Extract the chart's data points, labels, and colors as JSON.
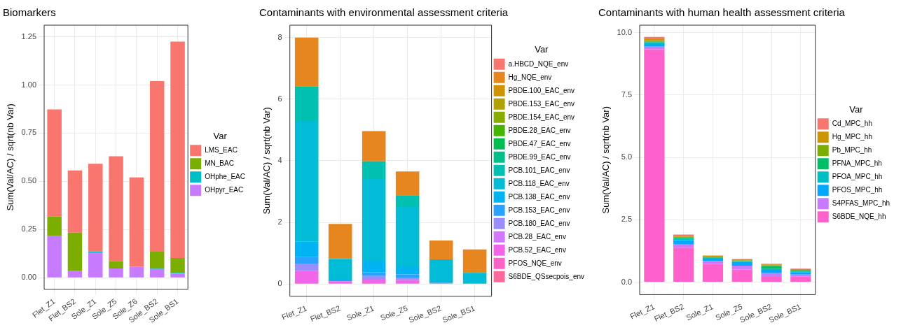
{
  "chart_data": [
    {
      "type": "bar",
      "stacked": true,
      "title": "Biomarkers",
      "ylabel": "Sum(Val/AC) / sqrt(nb Var)",
      "legend_title": "Var",
      "legend": "right",
      "grid": true,
      "categories": [
        "Flet_Z1",
        "Flet_BS2",
        "Sole_Z1",
        "Sole_Z5",
        "Sole_Z6",
        "Sole_BS2",
        "Sole_BS1"
      ],
      "ylim": [
        -0.06,
        1.31
      ],
      "yticks": [
        {
          "value": 0,
          "label": "0.00"
        },
        {
          "value": 0.25,
          "label": "0.25"
        },
        {
          "value": 0.5,
          "label": "0.50"
        },
        {
          "value": 0.75,
          "label": "0.75"
        },
        {
          "value": 1,
          "label": "1.00"
        },
        {
          "value": 1.25,
          "label": "1.25"
        }
      ],
      "series": [
        {
          "name": "OHpyr_EAC",
          "color": "#c77cff",
          "values": [
            0.216,
            0.034,
            0.131,
            0.048,
            0.058,
            0.045,
            0.021
          ]
        },
        {
          "name": "OHphe_EAC",
          "color": "#00bfc4",
          "values": [
            0,
            0,
            0.005,
            0.004,
            null,
            0.003,
            0.004
          ]
        },
        {
          "name": "MN_BAC",
          "color": "#7cae00",
          "values": [
            0.101,
            0.2,
            0,
            0.033,
            0,
            0.087,
            0.077
          ]
        },
        {
          "name": "LMS_EAC",
          "color": "#f8766d",
          "values": [
            0.556,
            0.323,
            0.455,
            0.545,
            0.462,
            0.885,
            1.123
          ]
        }
      ]
    },
    {
      "type": "bar",
      "stacked": true,
      "title": "Contaminants with environmental assessment criteria",
      "ylabel": "Sum(Val/AC) / sqrt(nb Var)",
      "legend_title": "Var",
      "legend": "right",
      "grid": true,
      "categories": [
        "Flet_Z1",
        "Flet_BS2",
        "Sole_Z1",
        "Sole_Z5",
        "Sole_BS2",
        "Sole_BS1"
      ],
      "ylim": [
        -0.4,
        8.4
      ],
      "yticks": [
        0,
        2,
        4,
        6,
        8
      ],
      "series": [
        {
          "name": "S6BDE_QSsecpois_env",
          "color": "#ff689e",
          "values": [
            0,
            0,
            0,
            0,
            0,
            0
          ]
        },
        {
          "name": "PFOS_NQE_env",
          "color": "#ff61c7",
          "values": [
            0,
            0,
            0,
            0,
            0,
            0
          ]
        },
        {
          "name": "PCB.52_EAC_env",
          "color": "#f166e8",
          "values": [
            0.42,
            0.09,
            0.16,
            0.13,
            0.03,
            null
          ]
        },
        {
          "name": "PCB.28_EAC_env",
          "color": "#d277ff",
          "values": [
            0,
            0,
            0,
            0,
            0,
            0
          ]
        },
        {
          "name": "PCB.180_EAC_env",
          "color": "#9c8dff",
          "values": [
            0.24,
            0,
            0.1,
            0.08,
            0,
            0
          ]
        },
        {
          "name": "PCB.153_EAC_env",
          "color": "#29a3ff",
          "values": [
            0.21,
            0,
            0.12,
            0.1,
            0,
            0
          ]
        },
        {
          "name": "PCB.138_EAC_env",
          "color": "#00b3f2",
          "values": [
            0.51,
            0.07,
            0.35,
            0.26,
            0.04,
            0
          ]
        },
        {
          "name": "PCB.118_EAC_env",
          "color": "#00bcd6",
          "values": [
            3.89,
            0.65,
            2.68,
            1.93,
            0.73,
            0.36
          ]
        },
        {
          "name": "PCB.101_EAC_env",
          "color": "#00c0b2",
          "values": [
            1.11,
            0.03,
            0.57,
            0.38,
            0,
            0
          ]
        },
        {
          "name": "PBDE.99_EAC_env",
          "color": "#00c087",
          "values": [
            0.03,
            0,
            0,
            0,
            0,
            0
          ]
        },
        {
          "name": "PBDE.47_EAC_env",
          "color": "#00bc51",
          "values": [
            0,
            0,
            0,
            0,
            0,
            0
          ]
        },
        {
          "name": "PBDE.28_EAC_env",
          "color": "#45b500",
          "values": [
            0,
            0,
            0,
            0,
            0,
            0
          ]
        },
        {
          "name": "PBDE.154_EAC_env",
          "color": "#89ac00",
          "values": [
            0,
            0,
            0,
            0,
            0,
            0
          ]
        },
        {
          "name": "PBDE.153_EAC_env",
          "color": "#b2a100",
          "values": [
            0,
            0,
            0,
            0,
            0,
            0
          ]
        },
        {
          "name": "PBDE.100_EAC_env",
          "color": "#d09400",
          "values": [
            0,
            0,
            0,
            0,
            0,
            0
          ]
        },
        {
          "name": "Hg_NQE_env",
          "color": "#e7851e",
          "values": [
            1.59,
            1.11,
            0.98,
            0.77,
            0.61,
            0.76
          ]
        },
        {
          "name": "a.HBCD_NQE_env",
          "color": "#f8766d",
          "values": [
            0,
            0,
            0,
            0,
            0,
            0
          ]
        }
      ]
    },
    {
      "type": "bar",
      "stacked": true,
      "title": "Contaminants with human health assessment criteria",
      "ylabel": "Sum(Val/AC) / sqrt(nb Var)",
      "legend_title": "Var",
      "legend": "right",
      "grid": true,
      "categories": [
        "Flet_Z1",
        "Flet_BS2",
        "Sole_Z1",
        "Sole_Z5",
        "Sole_BS2",
        "Sole_BS1"
      ],
      "ylim": [
        -0.5,
        10.3
      ],
      "yticks": [
        {
          "value": 0,
          "label": "0.0"
        },
        {
          "value": 2.5,
          "label": "2.5"
        },
        {
          "value": 5,
          "label": "5.0"
        },
        {
          "value": 7.5,
          "label": "7.5"
        },
        {
          "value": 10,
          "label": "10.0"
        }
      ],
      "series": [
        {
          "name": "S6BDE_NQE_hh",
          "color": "#ff61cc",
          "values": [
            9.33,
            1.38,
            0.73,
            0.51,
            0.21,
            0.23
          ]
        },
        {
          "name": "S4PFAS_MPC_hh",
          "color": "#c77cff",
          "values": [
            0.11,
            0.15,
            0.11,
            0.15,
            0.15,
            0.07
          ]
        },
        {
          "name": "PFOS_MPC_hh",
          "color": "#00a9ff",
          "values": [
            0.1,
            0.15,
            0.1,
            0.15,
            0.13,
            0.1
          ]
        },
        {
          "name": "PFOA_MPC_hh",
          "color": "#00bfc4",
          "values": [
            0.07,
            0.07,
            0.03,
            0.03,
            0.04,
            0.03
          ]
        },
        {
          "name": "PFNA_MPC_hh",
          "color": "#00be67",
          "values": [
            0.04,
            0.04,
            0.02,
            0.02,
            0.12,
            0.04
          ]
        },
        {
          "name": "Pb_MPC_hh",
          "color": "#7cae00",
          "values": [
            0.02,
            0.03,
            0.03,
            0.02,
            0.03,
            0.02
          ]
        },
        {
          "name": "Hg_MPC_hh",
          "color": "#cd9600",
          "values": [
            0.07,
            0.02,
            0.03,
            0.03,
            0.03,
            0.03
          ]
        },
        {
          "name": "Cd_MPC_hh",
          "color": "#f8766d",
          "values": [
            0.09,
            0.07,
            0.02,
            0.02,
            0.03,
            0.02
          ]
        }
      ]
    }
  ]
}
